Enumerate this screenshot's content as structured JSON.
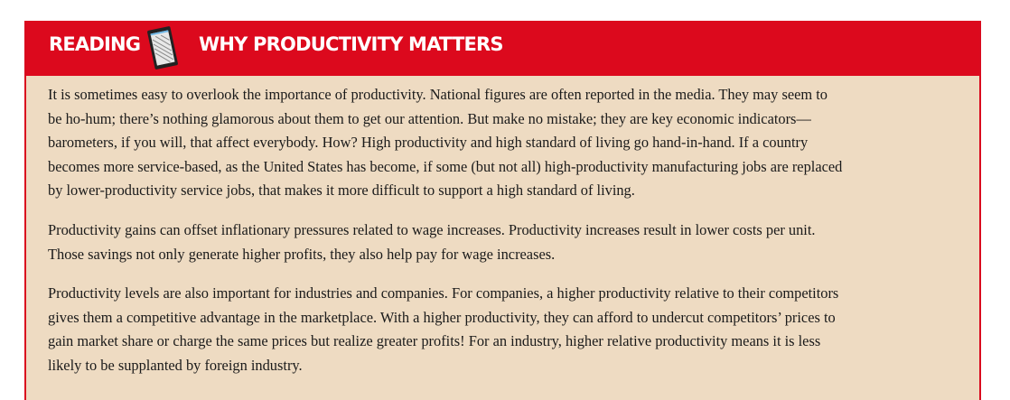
{
  "header": {
    "label": "READING",
    "icon": "tablet-icon",
    "title": "WHY PRODUCTIVITY MATTERS"
  },
  "colors": {
    "header": "#dc091d",
    "body": "#eedbc2"
  },
  "paragraphs": [
    {
      "lines": [
        "It is sometimes easy to overlook the importance of productivity. National figures are often reported in the media. They may seem to",
        "be ho-hum; there’s nothing glamorous about them to get our attention. But make no mistake; they are key economic indicators—",
        "barometers, if you will, that affect everybody. How? High productivity and high standard of living go hand-in-hand. If a country",
        "becomes more service-based, as the United States has become, if some (but not all) high-productivity manufacturing jobs are replaced",
        "by lower-productivity service jobs, that makes it more difficult to support a high standard of living."
      ]
    },
    {
      "lines": [
        "Productivity gains can offset inflationary pressures related to wage increases. Productivity increases result in lower costs per unit.",
        "Those savings not only generate higher profits, they also help pay for wage increases."
      ]
    },
    {
      "lines": [
        "Productivity levels are also important for industries and companies. For companies, a higher productivity relative to their competitors",
        "gives them a competitive advantage in the marketplace. With a higher productivity, they can afford to undercut competitors’ prices to",
        "gain market share or charge the same prices but realize greater profits! For an industry, higher relative productivity means it is less",
        "likely to be supplanted by foreign industry."
      ]
    }
  ]
}
